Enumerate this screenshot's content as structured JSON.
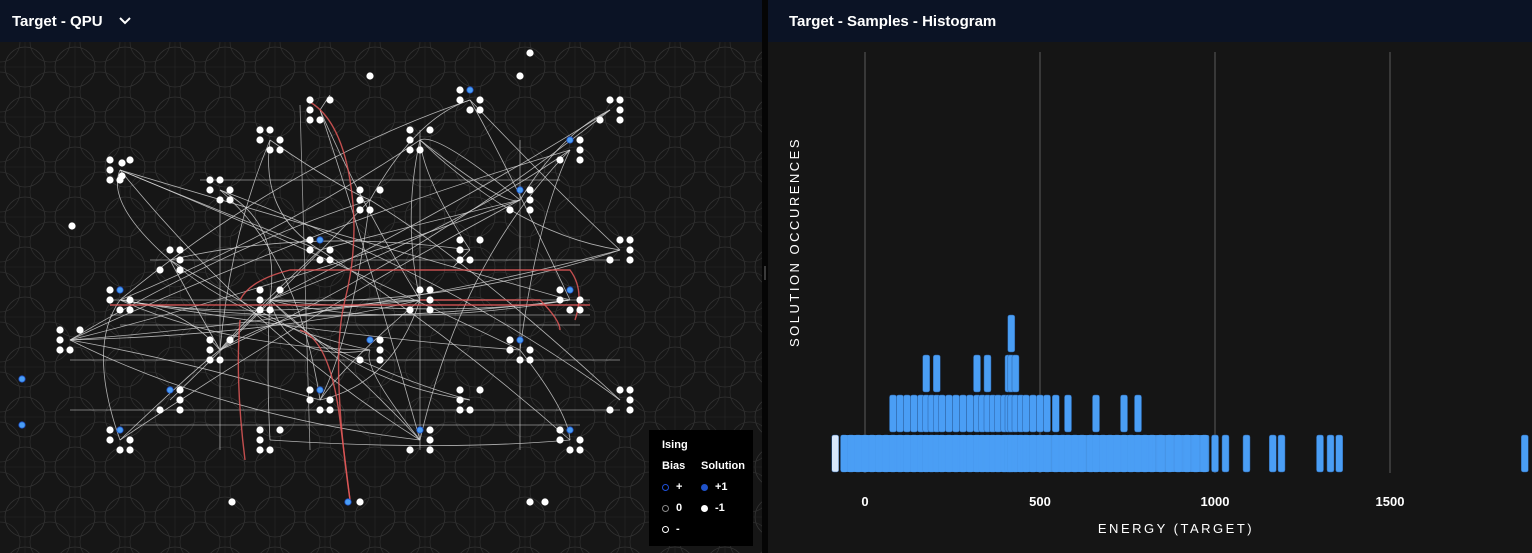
{
  "left_panel": {
    "title": "Target - QPU",
    "dropdown_icon": "chevron-down-icon",
    "legend": {
      "title": "Ising",
      "bias_header": "Bias",
      "solution_header": "Solution",
      "bias_items": [
        {
          "symbol": "+",
          "color": "#1e4fd8"
        },
        {
          "symbol": "0",
          "color": "#8a8a8a"
        },
        {
          "symbol": "-",
          "color": "#ffffff"
        }
      ],
      "solution_items": [
        {
          "symbol": "+1",
          "color": "#1f52c9"
        },
        {
          "symbol": "-1",
          "color": "#ffffff"
        }
      ]
    }
  },
  "right_panel": {
    "title": "Target - Samples - Histogram",
    "chart_data": {
      "type": "bar",
      "xlabel": "ENERGY (TARGET)",
      "ylabel": "SOLUTION OCCURENCES",
      "x_ticks": [
        0,
        500,
        1000,
        1500
      ],
      "xlim": [
        -95,
        1900
      ],
      "ylim": [
        0,
        4
      ],
      "grid": "vertical",
      "bar_color": "#4a9ef5",
      "highlight_color": "#d8e8fb",
      "bars": [
        {
          "energy": -85,
          "count": 1,
          "highlight": true
        },
        {
          "energy": -60,
          "count": 1
        },
        {
          "energy": -40,
          "count": 1
        },
        {
          "energy": -20,
          "count": 1
        },
        {
          "energy": 0,
          "count": 1
        },
        {
          "energy": 20,
          "count": 1
        },
        {
          "energy": 40,
          "count": 1
        },
        {
          "energy": 60,
          "count": 1
        },
        {
          "energy": 80,
          "count": 2
        },
        {
          "energy": 100,
          "count": 2
        },
        {
          "energy": 120,
          "count": 2
        },
        {
          "energy": 140,
          "count": 2
        },
        {
          "energy": 160,
          "count": 2
        },
        {
          "energy": 175,
          "count": 3
        },
        {
          "energy": 190,
          "count": 2
        },
        {
          "energy": 205,
          "count": 3
        },
        {
          "energy": 220,
          "count": 2
        },
        {
          "energy": 240,
          "count": 2
        },
        {
          "energy": 260,
          "count": 2
        },
        {
          "energy": 280,
          "count": 2
        },
        {
          "energy": 300,
          "count": 2
        },
        {
          "energy": 320,
          "count": 3
        },
        {
          "energy": 335,
          "count": 2
        },
        {
          "energy": 350,
          "count": 3
        },
        {
          "energy": 365,
          "count": 2
        },
        {
          "energy": 380,
          "count": 2
        },
        {
          "energy": 398,
          "count": 2
        },
        {
          "energy": 410,
          "count": 3
        },
        {
          "energy": 418,
          "count": 4
        },
        {
          "energy": 430,
          "count": 3
        },
        {
          "energy": 445,
          "count": 2
        },
        {
          "energy": 460,
          "count": 2
        },
        {
          "energy": 480,
          "count": 2
        },
        {
          "energy": 500,
          "count": 2
        },
        {
          "energy": 520,
          "count": 2
        },
        {
          "energy": 545,
          "count": 2
        },
        {
          "energy": 565,
          "count": 1
        },
        {
          "energy": 580,
          "count": 2
        },
        {
          "energy": 600,
          "count": 1
        },
        {
          "energy": 620,
          "count": 1
        },
        {
          "energy": 645,
          "count": 1
        },
        {
          "energy": 660,
          "count": 2
        },
        {
          "energy": 680,
          "count": 1
        },
        {
          "energy": 700,
          "count": 1
        },
        {
          "energy": 720,
          "count": 1
        },
        {
          "energy": 740,
          "count": 2
        },
        {
          "energy": 760,
          "count": 1
        },
        {
          "energy": 780,
          "count": 2
        },
        {
          "energy": 800,
          "count": 1
        },
        {
          "energy": 820,
          "count": 1
        },
        {
          "energy": 845,
          "count": 1
        },
        {
          "energy": 870,
          "count": 1
        },
        {
          "energy": 895,
          "count": 1
        },
        {
          "energy": 920,
          "count": 1
        },
        {
          "energy": 945,
          "count": 1
        },
        {
          "energy": 970,
          "count": 1
        },
        {
          "energy": 1000,
          "count": 1
        },
        {
          "energy": 1030,
          "count": 1
        },
        {
          "energy": 1090,
          "count": 1
        },
        {
          "energy": 1165,
          "count": 1
        },
        {
          "energy": 1190,
          "count": 1
        },
        {
          "energy": 1300,
          "count": 1
        },
        {
          "energy": 1330,
          "count": 1
        },
        {
          "energy": 1355,
          "count": 1
        },
        {
          "energy": 1885,
          "count": 1
        }
      ]
    }
  }
}
